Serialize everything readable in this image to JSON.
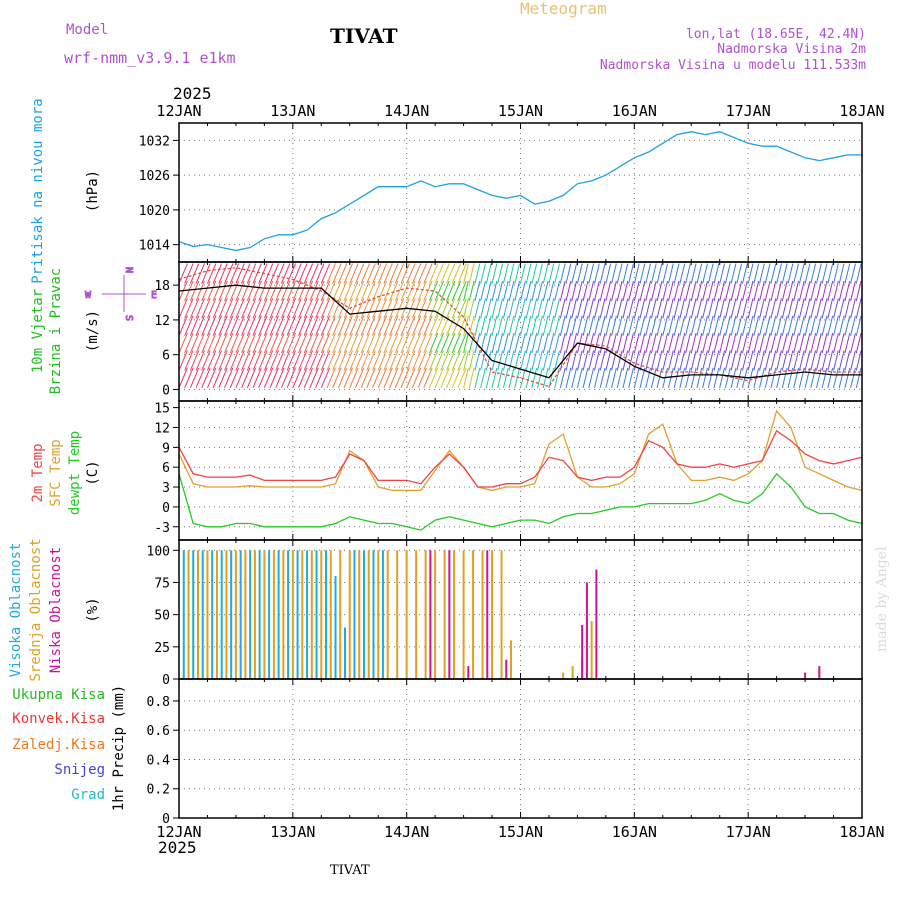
{
  "header": {
    "model_label": "Model",
    "model_name": "wrf-nmm_v3.9.1 e1km",
    "station": "TIVAT",
    "title": "Meteogram",
    "location": "lon,lat (18.65E, 42.4N)",
    "elevation": "Nadmorska Visina 2m",
    "model_elevation": "Nadmorska Visina u modelu 111.533m",
    "footer_station": "TIVAT",
    "credit": "made by Angel"
  },
  "colors": {
    "pressure": "#1ea0e6",
    "wind_speed": "#000000",
    "wind_gust": "#e0503c",
    "t2m": "#ee4444",
    "sfc": "#e0a030",
    "dewpt": "#22cc22",
    "high_cloud": "#22aadd",
    "mid_cloud": "#e0a020",
    "low_cloud": "#cc1199",
    "total_precip": "#22bb22",
    "conv_precip": "#ee3333",
    "frz_precip": "#ee7722",
    "snow": "#4444dd",
    "hail": "#22bbbb",
    "header_purple": "#b050d0",
    "header_gold": "#e8c070"
  },
  "chart_data": [
    {
      "type": "line",
      "id": "pressure",
      "ylabel": [
        "Pritisak na nivou mora",
        "(hPa)"
      ],
      "year": "2025",
      "x_ticks": [
        "12JAN",
        "13JAN",
        "14JAN",
        "15JAN",
        "16JAN",
        "17JAN",
        "18JAN"
      ],
      "y_ticks": [
        1014,
        1020,
        1026,
        1032
      ],
      "ylim": [
        1011,
        1035
      ],
      "xlim": [
        0,
        144
      ],
      "series": [
        {
          "x": [
            0,
            3,
            6,
            9,
            12,
            15,
            18,
            21,
            24,
            27,
            30,
            33,
            36,
            39,
            42,
            45,
            48,
            51,
            54,
            57,
            60,
            63,
            66,
            69,
            72,
            75,
            78,
            81,
            84,
            87,
            90,
            93,
            96,
            99,
            102,
            105,
            108,
            111,
            114,
            117,
            120,
            123,
            126,
            129,
            132,
            135,
            138,
            141,
            144
          ],
          "values": [
            1014.5,
            1013.7,
            1014.0,
            1013.5,
            1013.0,
            1013.5,
            1015.0,
            1015.7,
            1015.7,
            1016.5,
            1018.5,
            1019.5,
            1021.0,
            1022.5,
            1024.0,
            1024.0,
            1024.0,
            1025.0,
            1024.0,
            1024.5,
            1024.5,
            1023.5,
            1022.5,
            1022.0,
            1022.5,
            1021.0,
            1021.5,
            1022.5,
            1024.5,
            1025.0,
            1026.0,
            1027.5,
            1029.0,
            1030.0,
            1031.5,
            1033.0,
            1033.5,
            1033.0,
            1033.5,
            1032.5,
            1031.5,
            1031.0,
            1031.0,
            1030.0,
            1029.0,
            1028.5,
            1029.0,
            1029.5,
            1029.5
          ]
        }
      ]
    },
    {
      "type": "line",
      "id": "wind",
      "ylabel": [
        "10m Vjetar",
        "Brzina i Pravac",
        "(m/s)"
      ],
      "compass": {
        "n": "N",
        "s": "S",
        "e": "E",
        "w": "W"
      },
      "y_ticks": [
        0,
        6,
        12,
        18
      ],
      "ylim": [
        -2,
        22
      ],
      "xlim": [
        0,
        144
      ],
      "series": [
        {
          "name": "speed",
          "x": [
            0,
            6,
            12,
            18,
            24,
            30,
            36,
            42,
            48,
            54,
            60,
            66,
            72,
            78,
            84,
            90,
            96,
            102,
            108,
            114,
            120,
            126,
            132,
            138,
            144
          ],
          "values": [
            17,
            17.5,
            18,
            17.5,
            17.5,
            17.5,
            13,
            13.5,
            14,
            13.5,
            10.5,
            5,
            3.5,
            2,
            8,
            7,
            4,
            2,
            2.5,
            2.5,
            2,
            2.5,
            3,
            2.5,
            2.5
          ]
        },
        {
          "name": "gust",
          "x": [
            0,
            6,
            12,
            18,
            24,
            30,
            36,
            42,
            48,
            54,
            60,
            66,
            72,
            78,
            84,
            90,
            96,
            102,
            108,
            114,
            120,
            126,
            132,
            138,
            144
          ],
          "values": [
            19,
            20.5,
            21,
            20,
            19,
            17,
            14,
            16,
            17.5,
            17,
            12.5,
            3,
            2,
            0.5,
            8,
            7.5,
            4.5,
            3,
            3,
            2.5,
            1.5,
            3,
            3.5,
            3,
            3
          ]
        }
      ]
    },
    {
      "type": "line",
      "id": "temperature",
      "ylabel": [
        "2m Temp",
        "SFC Temp",
        "dewpt Temp",
        "(C)"
      ],
      "y_ticks": [
        -3,
        0,
        3,
        6,
        9,
        12,
        15
      ],
      "ylim": [
        -5,
        16
      ],
      "xlim": [
        0,
        144
      ],
      "series": [
        {
          "name": "2m Temp",
          "x": [
            0,
            3,
            6,
            9,
            12,
            15,
            18,
            21,
            24,
            27,
            30,
            33,
            36,
            39,
            42,
            45,
            48,
            51,
            54,
            57,
            60,
            63,
            66,
            69,
            72,
            75,
            78,
            81,
            84,
            87,
            90,
            93,
            96,
            99,
            102,
            105,
            108,
            111,
            114,
            117,
            120,
            123,
            126,
            129,
            132,
            135,
            138,
            141,
            144
          ],
          "values": [
            9,
            5,
            4.5,
            4.5,
            4.5,
            4.8,
            4,
            4,
            4,
            4,
            4,
            4.5,
            8,
            7,
            4,
            4,
            4,
            3.5,
            6,
            8,
            6,
            3,
            3,
            3.5,
            3.5,
            4.5,
            7.5,
            7,
            4.5,
            4,
            4.5,
            4.5,
            6,
            10,
            9,
            6.5,
            6,
            6,
            6.5,
            6,
            6.5,
            7,
            11.5,
            10,
            8,
            7,
            6.5,
            7,
            7.5
          ]
        },
        {
          "name": "SFC Temp",
          "x": [
            0,
            3,
            6,
            9,
            12,
            15,
            18,
            21,
            24,
            27,
            30,
            33,
            36,
            39,
            42,
            45,
            48,
            51,
            54,
            57,
            60,
            63,
            66,
            69,
            72,
            75,
            78,
            81,
            84,
            87,
            90,
            93,
            96,
            99,
            102,
            105,
            108,
            111,
            114,
            117,
            120,
            123,
            126,
            129,
            132,
            135,
            138,
            141,
            144
          ],
          "values": [
            8,
            3.5,
            3,
            3,
            3,
            3.2,
            3,
            3,
            3,
            3,
            3,
            3.5,
            8.5,
            7,
            3,
            2.5,
            2.5,
            2.5,
            5.5,
            8.5,
            6,
            3,
            2.5,
            3,
            3,
            3.5,
            9.5,
            11,
            4.5,
            3,
            3,
            3.5,
            5,
            11,
            12.5,
            6.5,
            4,
            4,
            4.5,
            4,
            5,
            7,
            14.5,
            12,
            6,
            5,
            4,
            3,
            2.5
          ]
        },
        {
          "name": "dewpt Temp",
          "x": [
            0,
            3,
            6,
            9,
            12,
            15,
            18,
            21,
            24,
            27,
            30,
            33,
            36,
            39,
            42,
            45,
            48,
            51,
            54,
            57,
            60,
            63,
            66,
            69,
            72,
            75,
            78,
            81,
            84,
            87,
            90,
            93,
            96,
            99,
            102,
            105,
            108,
            111,
            114,
            117,
            120,
            123,
            126,
            129,
            132,
            135,
            138,
            141,
            144
          ],
          "values": [
            5,
            -2.5,
            -3,
            -3,
            -2.5,
            -2.5,
            -3,
            -3,
            -3,
            -3,
            -3,
            -2.5,
            -1.5,
            -2,
            -2.5,
            -2.5,
            -3,
            -3.5,
            -2,
            -1.5,
            -2,
            -2.5,
            -3,
            -2.5,
            -2,
            -2,
            -2.5,
            -1.5,
            -1,
            -1,
            -0.5,
            0,
            0,
            0.5,
            0.5,
            0.5,
            0.5,
            1,
            2,
            1,
            0.5,
            2,
            5,
            3,
            0,
            -1,
            -1,
            -2,
            -2.5
          ]
        }
      ]
    },
    {
      "type": "bar",
      "id": "cloud",
      "ylabel": [
        "Visoka Oblacnost",
        "Srednja Oblacnost",
        "Niska Oblacnost",
        "(%)"
      ],
      "y_ticks": [
        0,
        25,
        50,
        75,
        100
      ],
      "ylim": [
        0,
        108
      ],
      "xlim": [
        0,
        144
      ],
      "series": [
        {
          "name": "Visoka Oblacnost",
          "x": [
            1,
            3,
            5,
            7,
            9,
            11,
            13,
            15,
            17,
            19,
            21,
            23,
            25,
            27,
            29,
            31,
            33,
            35,
            37,
            39,
            41,
            43
          ],
          "values": [
            100,
            100,
            100,
            100,
            100,
            100,
            100,
            100,
            100,
            100,
            100,
            100,
            100,
            100,
            100,
            100,
            80,
            40,
            100,
            100,
            100,
            100
          ]
        },
        {
          "name": "Srednja Oblacnost",
          "x": [
            2,
            4,
            6,
            8,
            10,
            12,
            14,
            16,
            18,
            20,
            22,
            24,
            26,
            28,
            30,
            32,
            34,
            36,
            38,
            40,
            42,
            44,
            46,
            48,
            50,
            52,
            54,
            56,
            58,
            60,
            62,
            64,
            66,
            68,
            70,
            81,
            83,
            85,
            87
          ],
          "values": [
            100,
            100,
            100,
            100,
            100,
            100,
            100,
            100,
            100,
            100,
            100,
            100,
            100,
            100,
            100,
            100,
            100,
            100,
            100,
            100,
            100,
            100,
            100,
            100,
            100,
            100,
            100,
            100,
            100,
            100,
            100,
            100,
            100,
            100,
            30,
            5,
            10,
            15,
            45
          ]
        },
        {
          "name": "Niska Oblacnost",
          "x": [
            53,
            57,
            61,
            65,
            69,
            85,
            86,
            88,
            132,
            135
          ],
          "values": [
            100,
            100,
            10,
            100,
            15,
            42,
            75,
            85,
            5,
            10
          ]
        }
      ]
    },
    {
      "type": "bar",
      "id": "precip",
      "ylabel": [
        "1hr Precip (mm)"
      ],
      "legend": [
        "Ukupna Kisa",
        "Konvek.Kisa",
        "Zaledj.Kisa",
        "Snijeg",
        "Grad"
      ],
      "y_ticks": [
        0,
        0.2,
        0.4,
        0.6,
        0.8
      ],
      "ylim": [
        0,
        0.95
      ],
      "xlim": [
        0,
        144
      ],
      "x_ticks": [
        "12JAN",
        "13JAN",
        "14JAN",
        "15JAN",
        "16JAN",
        "17JAN",
        "18JAN"
      ],
      "year": "2025",
      "series": []
    }
  ]
}
